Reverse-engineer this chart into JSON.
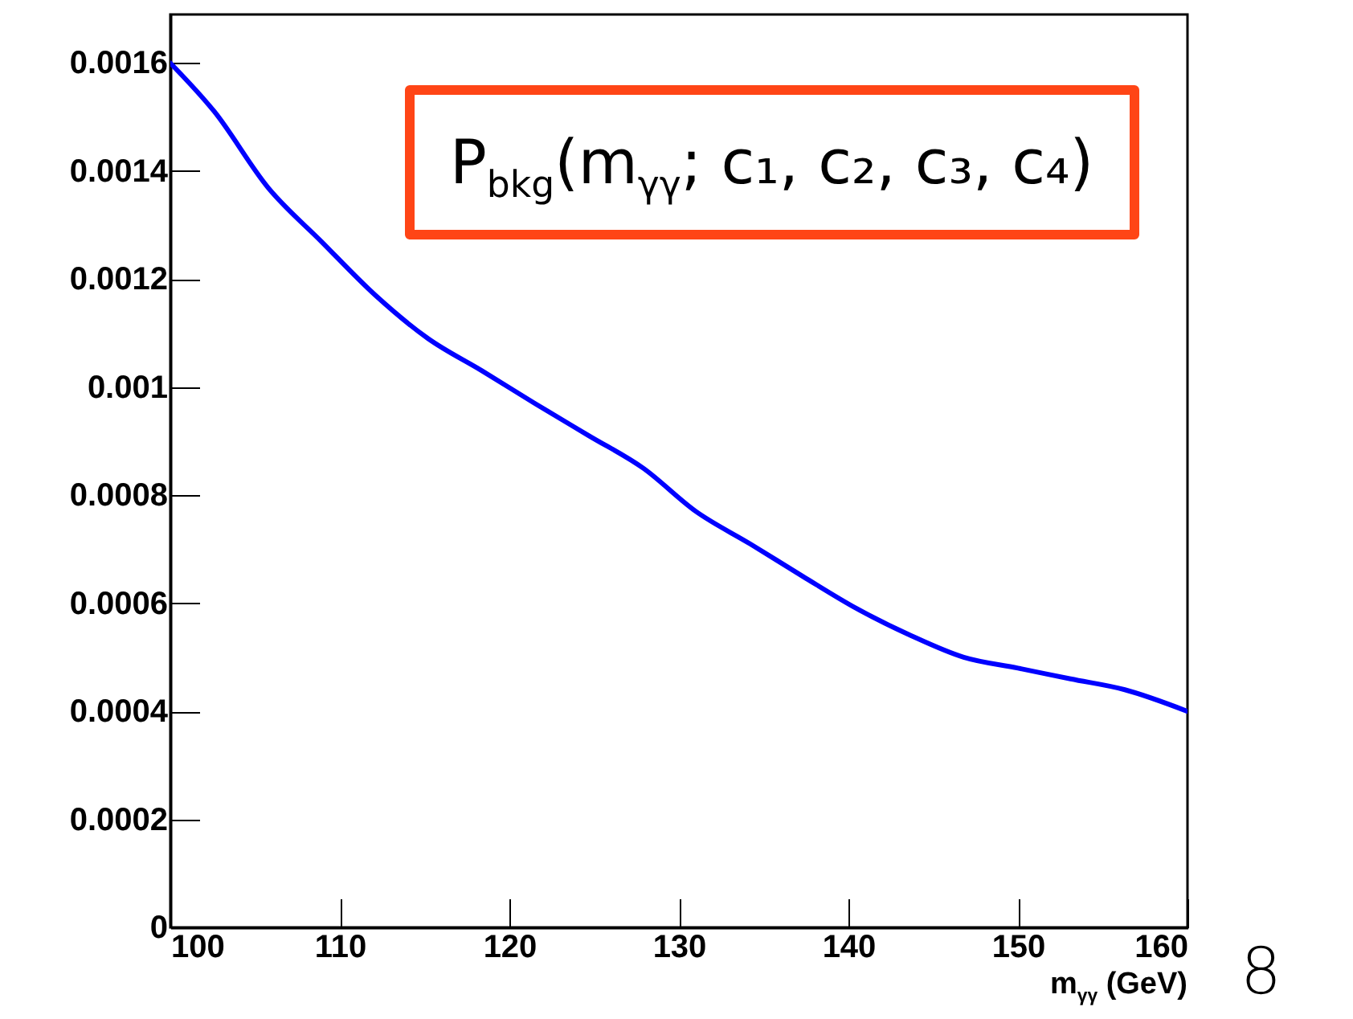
{
  "chart_data": {
    "type": "line",
    "xlabel": "m$_{γγ}$ (GeV)",
    "x": [
      100,
      102.6,
      105.75,
      108.9,
      112.1,
      115.2,
      118.4,
      121.5,
      124.7,
      127.9,
      131,
      134.2,
      137.3,
      140.5,
      143.7,
      146.8,
      150,
      153.1,
      156.3,
      160
    ],
    "series": [
      {
        "color": "#0000ff",
        "values": [
          0.0016,
          0.00151,
          0.00137,
          0.00127,
          0.00117,
          0.00109,
          0.00103,
          0.00097,
          0.00091,
          0.00085,
          0.00077,
          0.00071,
          0.00065,
          0.00059,
          0.00054,
          0.0005,
          0.00048,
          0.00046,
          0.00044,
          0.0004
        ]
      }
    ],
    "xlim": [
      100,
      160
    ],
    "xticks": [
      100,
      110,
      120,
      130,
      140,
      150,
      160
    ],
    "ylim": [
      0,
      0.00169
    ],
    "yticks": [
      0,
      0.0002,
      0.0004,
      0.0006,
      0.0008,
      0.001,
      0.0012,
      0.0014,
      0.0016
    ],
    "annotations": [
      "P$_{bkg}$(m$_{γγ}$; c₁, c₂, c₃, c₄)",
      "8"
    ]
  }
}
